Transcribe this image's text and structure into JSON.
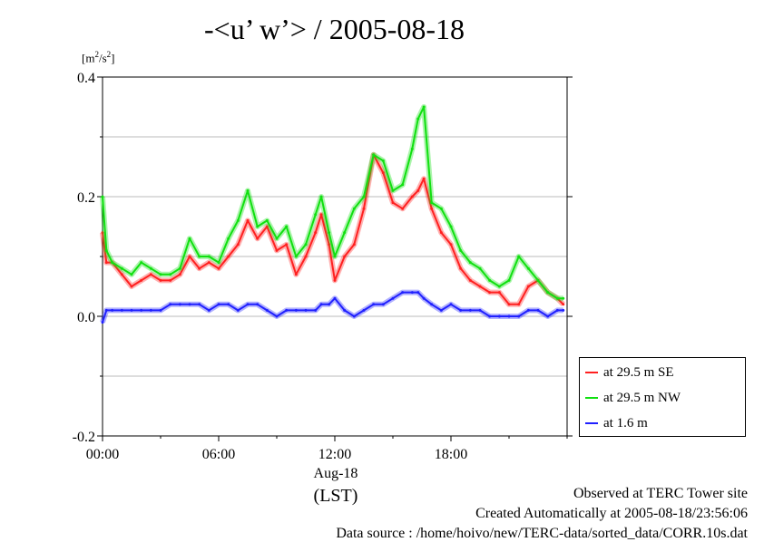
{
  "chart_data": {
    "type": "line",
    "title": "-<u’ w’> / 2005-08-18",
    "ylabel": "[m2/s2]",
    "ylim": [
      -0.2,
      0.4
    ],
    "xlim": [
      0,
      24
    ],
    "yticks": [
      {
        "v": 0.4,
        "label": "0.4"
      },
      {
        "v": 0.2,
        "label": "0.2"
      },
      {
        "v": 0.0,
        "label": "0.0"
      },
      {
        "v": -0.2,
        "label": "-0.2"
      }
    ],
    "xticks": [
      {
        "v": 0,
        "label": "00:00"
      },
      {
        "v": 6,
        "label": "06:00"
      },
      {
        "v": 12,
        "label": "12:00"
      },
      {
        "v": 18,
        "label": "18:00"
      }
    ],
    "x_sublabel": "Aug-18",
    "x_unit": "(LST)",
    "grid": true,
    "legend_position": "right",
    "series": [
      {
        "name": "at 29.5 m SE",
        "color": "#ff2020",
        "x": [
          0,
          0.2,
          0.5,
          1,
          1.5,
          2,
          2.5,
          3,
          3.5,
          4,
          4.5,
          5,
          5.5,
          6,
          6.5,
          7,
          7.5,
          8,
          8.5,
          9,
          9.5,
          10,
          10.5,
          11,
          11.3,
          11.7,
          12,
          12.5,
          13,
          13.5,
          14,
          14.5,
          15,
          15.5,
          16,
          16.3,
          16.6,
          17,
          17.5,
          18,
          18.5,
          19,
          19.5,
          20,
          20.5,
          21,
          21.5,
          22,
          22.5,
          23,
          23.5,
          23.8
        ],
        "values": [
          0.14,
          0.09,
          0.09,
          0.07,
          0.05,
          0.06,
          0.07,
          0.06,
          0.06,
          0.07,
          0.1,
          0.08,
          0.09,
          0.08,
          0.1,
          0.12,
          0.16,
          0.13,
          0.15,
          0.11,
          0.12,
          0.07,
          0.1,
          0.14,
          0.17,
          0.12,
          0.06,
          0.1,
          0.12,
          0.18,
          0.27,
          0.24,
          0.19,
          0.18,
          0.2,
          0.21,
          0.23,
          0.18,
          0.14,
          0.12,
          0.08,
          0.06,
          0.05,
          0.04,
          0.04,
          0.02,
          0.02,
          0.05,
          0.06,
          0.04,
          0.03,
          0.02
        ]
      },
      {
        "name": "at 29.5 m NW",
        "color": "#10e010",
        "x": [
          0,
          0.2,
          0.5,
          1,
          1.5,
          2,
          2.5,
          3,
          3.5,
          4,
          4.5,
          5,
          5.5,
          6,
          6.5,
          7,
          7.5,
          8,
          8.5,
          9,
          9.5,
          10,
          10.5,
          11,
          11.3,
          11.7,
          12,
          12.5,
          13,
          13.5,
          14,
          14.5,
          15,
          15.5,
          16,
          16.3,
          16.6,
          17,
          17.5,
          18,
          18.5,
          19,
          19.5,
          20,
          20.5,
          21,
          21.5,
          22,
          22.5,
          23,
          23.5,
          23.8
        ],
        "values": [
          0.2,
          0.11,
          0.09,
          0.08,
          0.07,
          0.09,
          0.08,
          0.07,
          0.07,
          0.08,
          0.13,
          0.1,
          0.1,
          0.09,
          0.13,
          0.16,
          0.21,
          0.15,
          0.16,
          0.13,
          0.15,
          0.1,
          0.12,
          0.17,
          0.2,
          0.14,
          0.1,
          0.14,
          0.18,
          0.2,
          0.27,
          0.26,
          0.21,
          0.22,
          0.28,
          0.33,
          0.35,
          0.19,
          0.18,
          0.15,
          0.11,
          0.09,
          0.08,
          0.06,
          0.05,
          0.06,
          0.1,
          0.08,
          0.06,
          0.04,
          0.03,
          0.03
        ]
      },
      {
        "name": "at 1.6 m",
        "color": "#2020ff",
        "x": [
          0,
          0.2,
          0.5,
          1,
          1.5,
          2,
          2.5,
          3,
          3.5,
          4,
          4.5,
          5,
          5.5,
          6,
          6.5,
          7,
          7.5,
          8,
          8.5,
          9,
          9.5,
          10,
          10.5,
          11,
          11.3,
          11.7,
          12,
          12.5,
          13,
          13.5,
          14,
          14.5,
          15,
          15.5,
          16,
          16.3,
          16.6,
          17,
          17.5,
          18,
          18.5,
          19,
          19.5,
          20,
          20.5,
          21,
          21.5,
          22,
          22.5,
          23,
          23.5,
          23.8
        ],
        "values": [
          -0.01,
          0.01,
          0.01,
          0.01,
          0.01,
          0.01,
          0.01,
          0.01,
          0.02,
          0.02,
          0.02,
          0.02,
          0.01,
          0.02,
          0.02,
          0.01,
          0.02,
          0.02,
          0.01,
          0.0,
          0.01,
          0.01,
          0.01,
          0.01,
          0.02,
          0.02,
          0.03,
          0.01,
          0.0,
          0.01,
          0.02,
          0.02,
          0.03,
          0.04,
          0.04,
          0.04,
          0.03,
          0.02,
          0.01,
          0.02,
          0.01,
          0.01,
          0.01,
          0.0,
          0.0,
          0.0,
          0.0,
          0.01,
          0.01,
          0.0,
          0.01,
          0.01
        ]
      }
    ]
  },
  "footer": {
    "line1": "Observed at TERC Tower site",
    "line2": "Created Automatically at 2005-08-18/23:56:06",
    "line3": "Data source : /home/hoivo/new/TERC-data/sorted_data/CORR.10s.dat"
  }
}
